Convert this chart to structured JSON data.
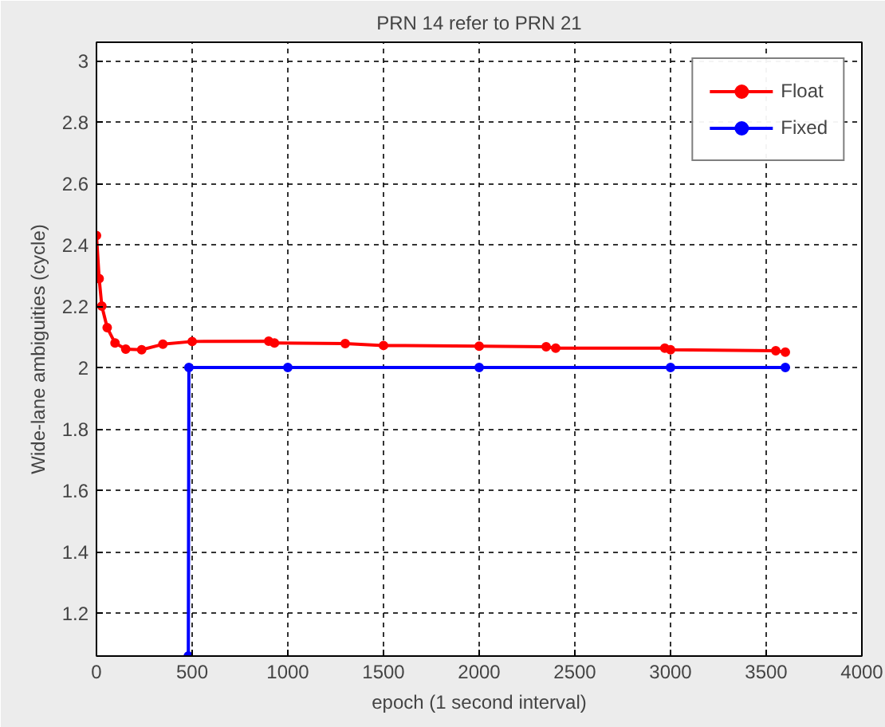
{
  "chart_data": {
    "type": "line",
    "title": "PRN 14 refer to PRN 21",
    "xlabel": "epoch (1 second interval)",
    "ylabel": "Wide-lane ambiguities (cycle)",
    "xlim": [
      0,
      4000
    ],
    "xticks": [
      0,
      500,
      1000,
      1500,
      2000,
      2500,
      3000,
      3500,
      4000
    ],
    "ylim": [
      1.06,
      3.06
    ],
    "yticks": [
      1.2,
      1.4,
      1.6,
      1.8,
      2,
      2.2,
      2.4,
      2.6,
      2.8,
      3
    ],
    "grid": true,
    "legend": "top right",
    "marker": "circle",
    "line_style": "solid",
    "series": [
      {
        "name": "Float",
        "color": "#ff0000",
        "x": [
          0,
          14,
          28,
          56,
          97,
          153,
          236,
          347,
          500,
          900,
          930,
          1300,
          1500,
          2000,
          2350,
          2400,
          2970,
          3000,
          3550,
          3600
        ],
        "values": [
          2.43,
          2.29,
          2.2,
          2.13,
          2.08,
          2.06,
          2.058,
          2.076,
          2.085,
          2.086,
          2.08,
          2.078,
          2.072,
          2.07,
          2.068,
          2.063,
          2.063,
          2.058,
          2.055,
          2.05
        ]
      },
      {
        "name": "Fixed",
        "color": "#0000ff",
        "x": [
          480,
          483,
          1000,
          2000,
          3000,
          3600
        ],
        "values": [
          1.06,
          2.0,
          2.0,
          2.0,
          2.0,
          2.0
        ]
      }
    ]
  }
}
